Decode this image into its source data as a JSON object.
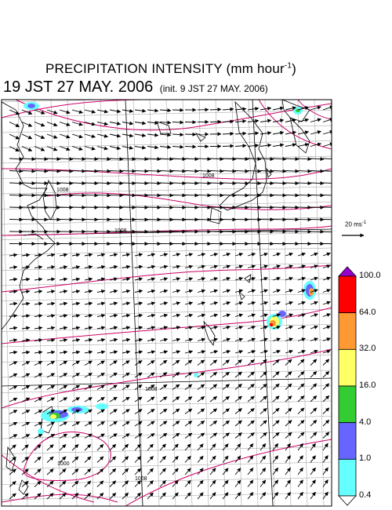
{
  "title": {
    "main": "PRECIPITATION INTENSITY (mm hour",
    "unit_exp": "-1",
    "close": ")"
  },
  "subtitle": {
    "valid_time": "19 JST 27 MAY. 2006",
    "init_time": "(init. 9 JST 27 MAY. 2006)"
  },
  "wind_scale": {
    "label": "20 ms",
    "exp": "-1"
  },
  "colorbar": {
    "levels": [
      "0.4",
      "1.0",
      "4.0",
      "16.0",
      "32.0",
      "64.0",
      "100.0"
    ],
    "colors": [
      "#66ffff",
      "#6666ff",
      "#33cc33",
      "#ffff66",
      "#ff9933",
      "#ff0000",
      "#9900cc"
    ]
  },
  "pressure_labels": [
    "1008",
    "1008",
    "1008",
    "1008",
    "1000",
    "1008"
  ],
  "map_colors": {
    "coast": "#000000",
    "grid": "#808080",
    "isobar": "#cc0066",
    "vector": "#000000"
  }
}
